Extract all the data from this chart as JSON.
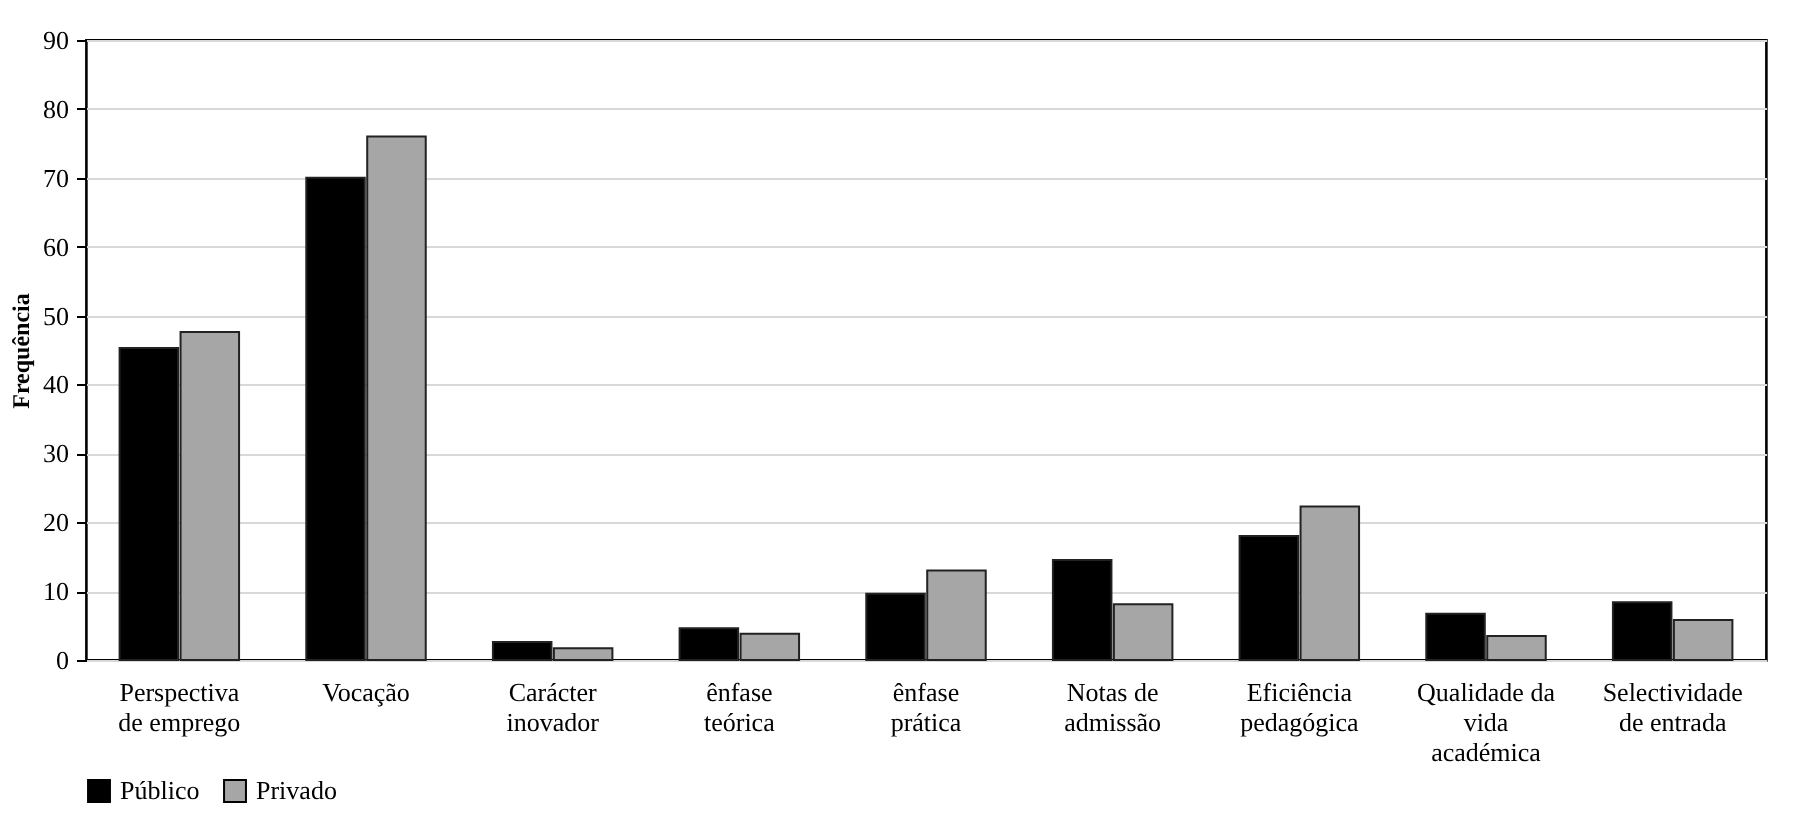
{
  "chart_data": {
    "type": "bar",
    "ylabel": "Frequência",
    "categories": [
      "Perspectiva de emprego",
      "Vocação",
      "Carácter inovador",
      "ênfase teórica",
      "ênfase prática",
      "Notas de admissão",
      "Eficiência pedagógica",
      "Qualidade da vida académica",
      "Selectividade de entrada"
    ],
    "series": [
      {
        "name": "Público",
        "color": "#000000",
        "values": [
          45.3,
          70,
          2.6,
          4.6,
          9.6,
          14.5,
          18,
          6.7,
          8.4
        ]
      },
      {
        "name": "Privado",
        "color": "#a6a6a6",
        "values": [
          47.6,
          76,
          1.7,
          3.8,
          13,
          8.1,
          22.3,
          3.5,
          5.8
        ]
      }
    ],
    "ylim": [
      0,
      90
    ],
    "yticks": [
      0,
      10,
      20,
      30,
      40,
      50,
      60,
      70,
      80,
      90
    ],
    "grid": "y",
    "legend": "bottom"
  }
}
